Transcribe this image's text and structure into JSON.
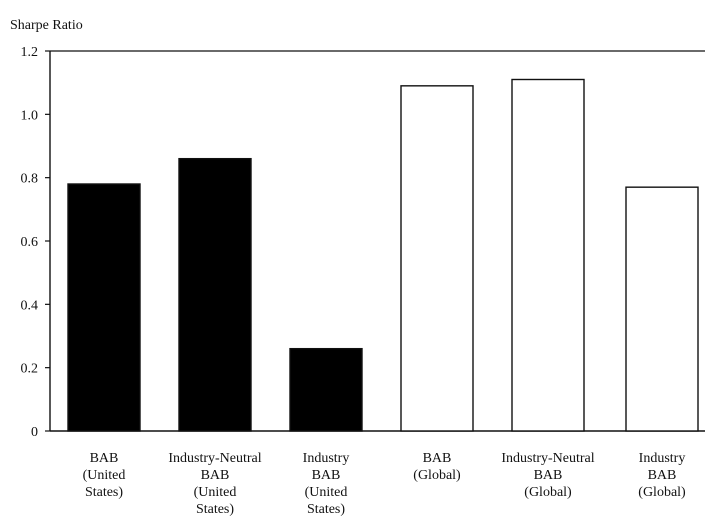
{
  "chart_data": {
    "type": "bar",
    "title": "",
    "ylabel": "Sharpe Ratio",
    "xlabel": "",
    "ylim": [
      0,
      1.2
    ],
    "yticks": [
      0,
      0.2,
      0.4,
      0.6,
      0.8,
      1.0,
      1.2
    ],
    "ytick_labels": [
      "0",
      "0.2",
      "0.4",
      "0.6",
      "0.8",
      "1.0",
      "1.2"
    ],
    "grid": false,
    "categories": [
      [
        "BAB",
        "(United",
        "States)"
      ],
      [
        "Industry-Neutral",
        "BAB",
        "(United",
        "States)"
      ],
      [
        "Industry",
        "BAB",
        "(United",
        "States)"
      ],
      [
        "BAB",
        "(Global)"
      ],
      [
        "Industry-Neutral",
        "BAB",
        "(Global)"
      ],
      [
        "Industry",
        "BAB",
        "(Global)"
      ]
    ],
    "values": [
      0.78,
      0.86,
      0.26,
      1.09,
      1.11,
      0.77
    ],
    "fills": [
      "#000000",
      "#000000",
      "#000000",
      "#ffffff",
      "#ffffff",
      "#ffffff"
    ]
  }
}
